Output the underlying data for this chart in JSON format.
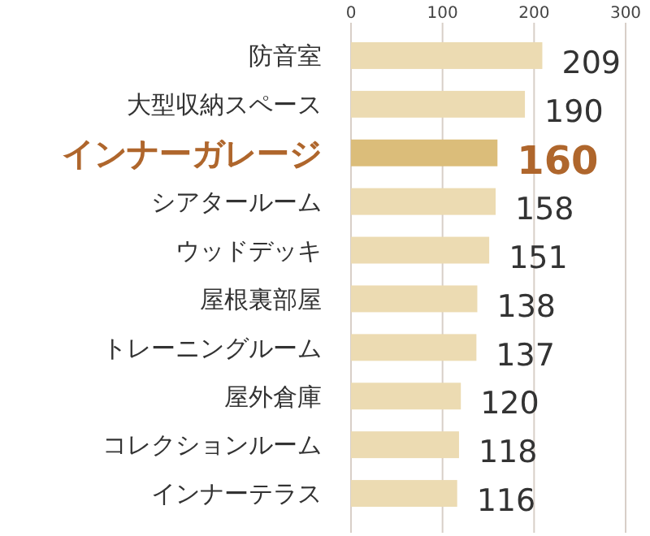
{
  "chart_data": {
    "type": "bar",
    "orientation": "horizontal",
    "categories": [
      "防音室",
      "大型収納スペース",
      "インナーガレージ",
      "シアタールーム",
      "ウッドデッキ",
      "屋根裏部屋",
      "トレーニングルーム",
      "屋外倉庫",
      "コレクションルーム",
      "インナーテラス"
    ],
    "values": [
      209,
      190,
      160,
      158,
      151,
      138,
      137,
      120,
      118,
      116
    ],
    "colors": [
      "#ecdbb2",
      "#ecdbb2",
      "#dbbd7a",
      "#ecdbb2",
      "#ecdbb2",
      "#ecdbb2",
      "#ecdbb2",
      "#ecdbb2",
      "#ecdbb2",
      "#ecdbb2"
    ],
    "xlim": [
      0,
      300
    ],
    "xticks": [
      0,
      100,
      200,
      300
    ],
    "grid": "x",
    "data_labels": true
  }
}
